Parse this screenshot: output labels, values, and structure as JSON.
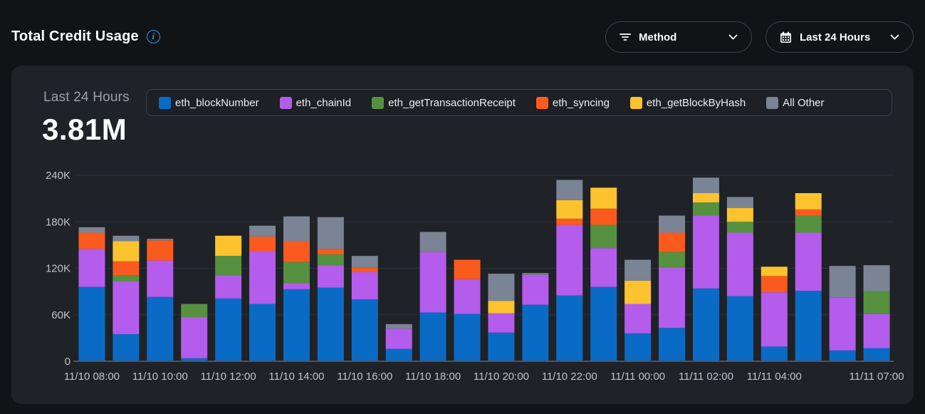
{
  "header": {
    "title": "Total Credit Usage",
    "filters": {
      "method_label": "Method",
      "range_label": "Last 24 Hours"
    }
  },
  "card": {
    "summary_label": "Last 24 Hours",
    "summary_value": "3.81M"
  },
  "colors": {
    "accent_blue": "#2d9ce4",
    "page_bg": "#111317",
    "card_bg": "#1f2227",
    "gridline": "#2e3238",
    "axis_line": "#4e545c",
    "axis_text": "#c0c4c9"
  },
  "chart_data": {
    "type": "bar",
    "stacked": true,
    "title": "Total Credit Usage - Last 24 Hours",
    "values_unit": "K (thousands of credits)",
    "ylim": [
      0,
      240
    ],
    "grid": "horizontal",
    "legend_position": "top",
    "y_ticks": [
      {
        "value": 0,
        "label": "0"
      },
      {
        "value": 60,
        "label": "60K"
      },
      {
        "value": 120,
        "label": "120K"
      },
      {
        "value": 180,
        "label": "180K"
      },
      {
        "value": 240,
        "label": "240K"
      }
    ],
    "x_tick_labels": [
      {
        "index": 0,
        "label": "11/10 08:00"
      },
      {
        "index": 2,
        "label": "11/10 10:00"
      },
      {
        "index": 4,
        "label": "11/10 12:00"
      },
      {
        "index": 6,
        "label": "11/10 14:00"
      },
      {
        "index": 8,
        "label": "11/10 16:00"
      },
      {
        "index": 10,
        "label": "11/10 18:00"
      },
      {
        "index": 12,
        "label": "11/10 20:00"
      },
      {
        "index": 14,
        "label": "11/10 22:00"
      },
      {
        "index": 16,
        "label": "11/11 00:00"
      },
      {
        "index": 18,
        "label": "11/11 02:00"
      },
      {
        "index": 20,
        "label": "11/11 04:00"
      },
      {
        "index": 23,
        "label": "11/11 07:00"
      }
    ],
    "series": [
      {
        "name": "eth_blockNumber",
        "color": "#0a6bc6",
        "values": [
          96,
          35,
          83,
          4,
          81,
          74,
          93,
          95,
          80,
          16,
          63,
          61,
          37,
          73,
          85,
          96,
          36,
          43,
          94,
          84,
          19,
          91,
          14,
          17
        ]
      },
      {
        "name": "eth_chainId",
        "color": "#b45ceb",
        "values": [
          49,
          68,
          47,
          53,
          30,
          68,
          8,
          29,
          35,
          26,
          78,
          45,
          25,
          39,
          91,
          50,
          38,
          78,
          94,
          82,
          70,
          75,
          68,
          44
        ]
      },
      {
        "name": "eth_getTransactionReceipt",
        "color": "#55913f",
        "values": [
          0,
          8,
          0,
          17,
          25,
          0,
          27,
          14,
          0,
          0,
          0,
          0,
          0,
          2,
          0,
          30,
          0,
          20,
          17,
          14,
          0,
          22,
          0,
          29
        ]
      },
      {
        "name": "eth_syncing",
        "color": "#fb5a1f",
        "values": [
          21,
          18,
          26,
          0,
          0,
          19,
          27,
          7,
          6,
          0,
          0,
          25,
          0,
          0,
          8,
          21,
          0,
          25,
          0,
          0,
          21,
          8,
          0,
          0
        ]
      },
      {
        "name": "eth_getBlockByHash",
        "color": "#fdc32e",
        "values": [
          0,
          26,
          0,
          0,
          26,
          0,
          0,
          0,
          0,
          0,
          0,
          0,
          16,
          0,
          24,
          27,
          30,
          0,
          12,
          18,
          12,
          21,
          0,
          0
        ]
      },
      {
        "name": "All Other",
        "color": "#7a8494",
        "values": [
          7,
          7,
          2,
          0,
          0,
          14,
          32,
          41,
          15,
          6,
          26,
          0,
          35,
          0,
          26,
          0,
          27,
          22,
          20,
          14,
          0,
          0,
          41,
          34
        ]
      }
    ]
  }
}
